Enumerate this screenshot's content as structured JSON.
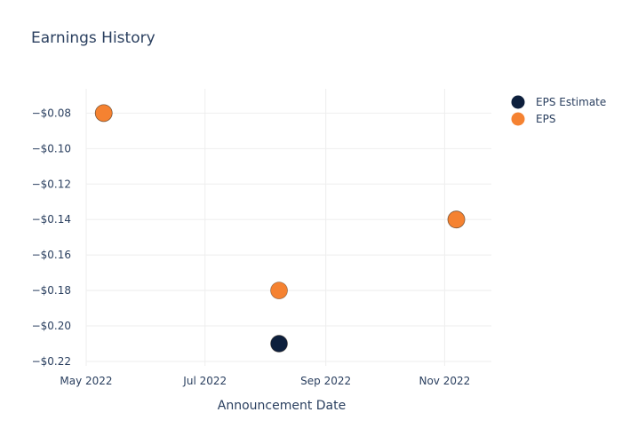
{
  "chart_data": {
    "type": "scatter",
    "title": "Earnings History",
    "xlabel": "Announcement Date",
    "ylabel": "",
    "x_ticks": [
      "May 2022",
      "Jul 2022",
      "Sep 2022",
      "Nov 2022"
    ],
    "y_ticks": [
      "−$0.08",
      "−$0.10",
      "−$0.12",
      "−$0.14",
      "−$0.16",
      "−$0.18",
      "−$0.20",
      "−$0.22"
    ],
    "xlim": [
      "2022-05-01",
      "2022-11-25"
    ],
    "ylim": [
      -0.2225,
      -0.0663
    ],
    "grid": true,
    "legend_position": "top-right",
    "series": [
      {
        "name": "EPS Estimate",
        "color": "#0d1f3c",
        "points": [
          {
            "x": "2022-05-10",
            "y": -0.08
          },
          {
            "x": "2022-08-08",
            "y": -0.21
          },
          {
            "x": "2022-11-07",
            "y": -0.14
          }
        ]
      },
      {
        "name": "EPS",
        "color": "#f58231",
        "points": [
          {
            "x": "2022-05-10",
            "y": -0.08
          },
          {
            "x": "2022-08-08",
            "y": -0.18
          },
          {
            "x": "2022-11-07",
            "y": -0.14
          }
        ]
      }
    ]
  }
}
